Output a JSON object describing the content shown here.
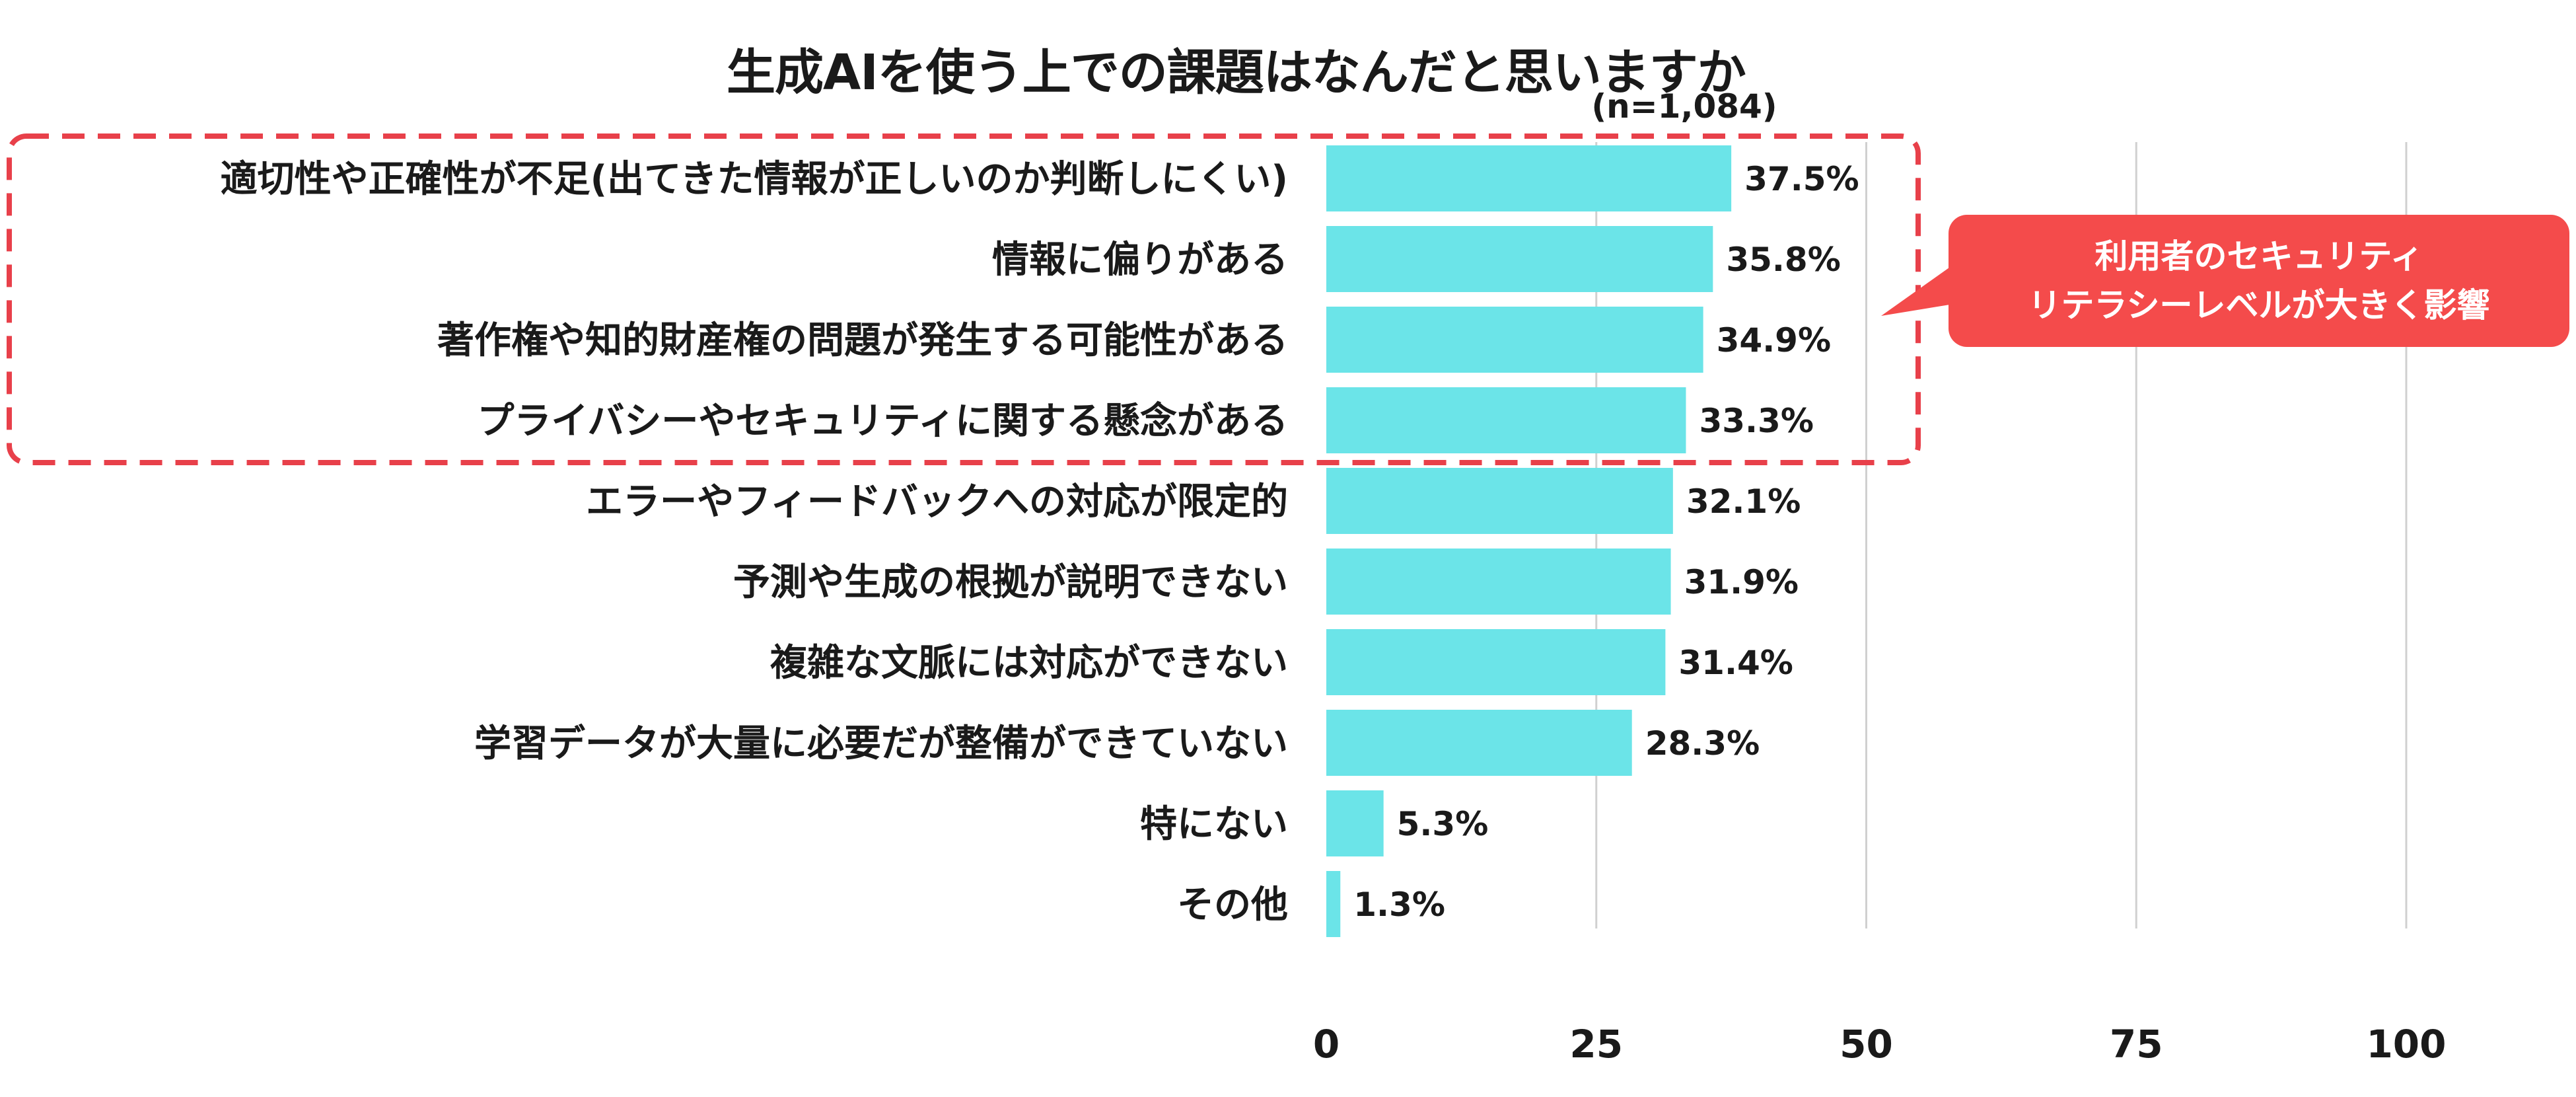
{
  "title": "生成AIを使う上での課題はなんだと思いますか",
  "sample_size": "(n=1,084)",
  "callout": {
    "line1": "利用者のセキュリティ",
    "line2": "リテラシーレベルが大きく影響",
    "color": "#f44b4b"
  },
  "colors": {
    "bar": "#6be4e8",
    "highlight_border": "#e8404a",
    "grid": "#d0d0d0"
  },
  "chart_data": {
    "type": "bar",
    "orientation": "horizontal",
    "title": "生成AIを使う上での課題はなんだと思いますか",
    "xlim": [
      0,
      100
    ],
    "x_ticks": [
      "0",
      "25",
      "50",
      "75",
      "100"
    ],
    "grid": true,
    "value_suffix": "%",
    "highlighted_categories": [
      0,
      1,
      2,
      3
    ],
    "categories": [
      "適切性や正確性が不足(出てきた情報が正しいのか判断しにくい)",
      "情報に偏りがある",
      "著作権や知的財産権の問題が発生する可能性がある",
      "プライバシーやセキュリティに関する懸念がある",
      "エラーやフィードバックへの対応が限定的",
      "予測や生成の根拠が説明できない",
      "複雑な文脈には対応ができない",
      "学習データが大量に必要だが整備ができていない",
      "特にない",
      "その他"
    ],
    "values": [
      37.5,
      35.8,
      34.9,
      33.3,
      32.1,
      31.9,
      31.4,
      28.3,
      5.3,
      1.3
    ],
    "value_labels": [
      "37.5%",
      "35.8%",
      "34.9%",
      "33.3%",
      "32.1%",
      "31.9%",
      "31.4%",
      "28.3%",
      "5.3%",
      "1.3%"
    ]
  }
}
